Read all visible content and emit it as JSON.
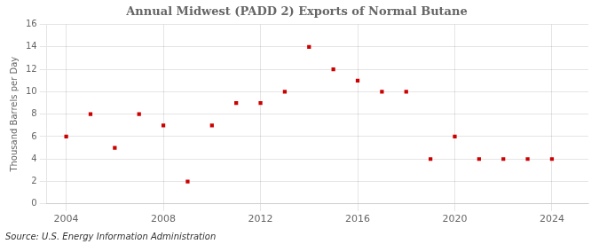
{
  "chart_data": {
    "type": "scatter",
    "title": "Annual Midwest (PADD 2) Exports of Normal Butane",
    "ylabel": "Thousand Barrels per Day",
    "source": "Source: U.S. Energy Information Administration",
    "x": [
      2004,
      2005,
      2006,
      2007,
      2008,
      2009,
      2010,
      2011,
      2012,
      2013,
      2014,
      2015,
      2016,
      2017,
      2018,
      2019,
      2020,
      2021,
      2022,
      2023,
      2024
    ],
    "values": [
      6.0,
      8.0,
      5.0,
      8.0,
      7.0,
      2.0,
      7.0,
      9.0,
      9.0,
      10.0,
      14.0,
      12.0,
      11.0,
      10.0,
      10.0,
      4.0,
      6.0,
      4.0,
      4.0,
      4.0,
      4.0
    ],
    "color": "#cc0000",
    "marker": "square",
    "xlim": [
      2003.2,
      2025.5
    ],
    "xticks": [
      2004,
      2008,
      2012,
      2016,
      2020,
      2024
    ],
    "ylim": [
      0,
      16
    ],
    "yticks": [
      0,
      2,
      4,
      6,
      8,
      10,
      12,
      14,
      16
    ],
    "grid": true
  }
}
